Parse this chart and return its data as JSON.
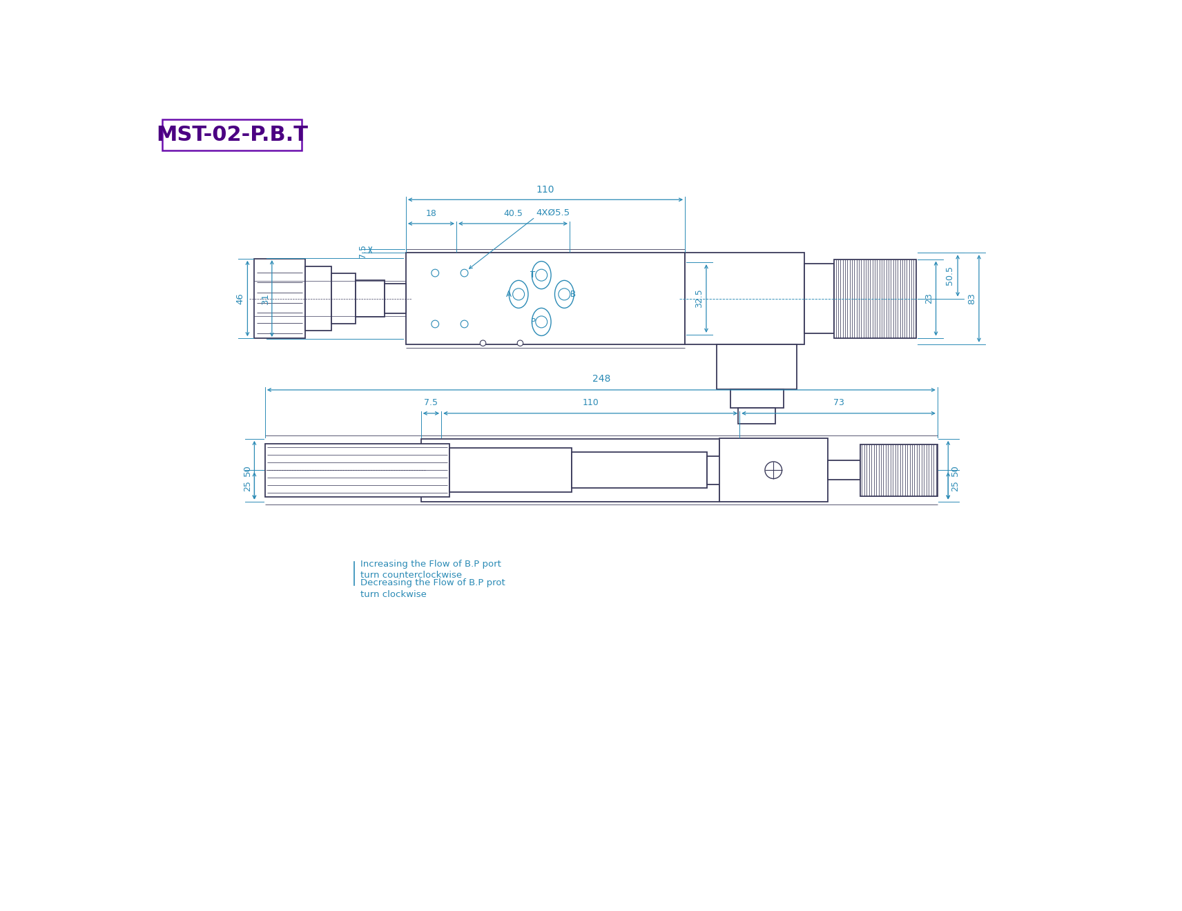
{
  "title": "MST-02-P.B.T",
  "title_color": "#4B0082",
  "title_border": "#6A0DAD",
  "dim_color": "#2a8ab5",
  "line_color": "#3a3a5a",
  "bg_color": "#ffffff",
  "note1": "Increasing the Flow of B.P port",
  "note2": "turn counterclockwise",
  "note3": "Decreasing the Flow of B.P prot",
  "note4": "turn clockwise"
}
